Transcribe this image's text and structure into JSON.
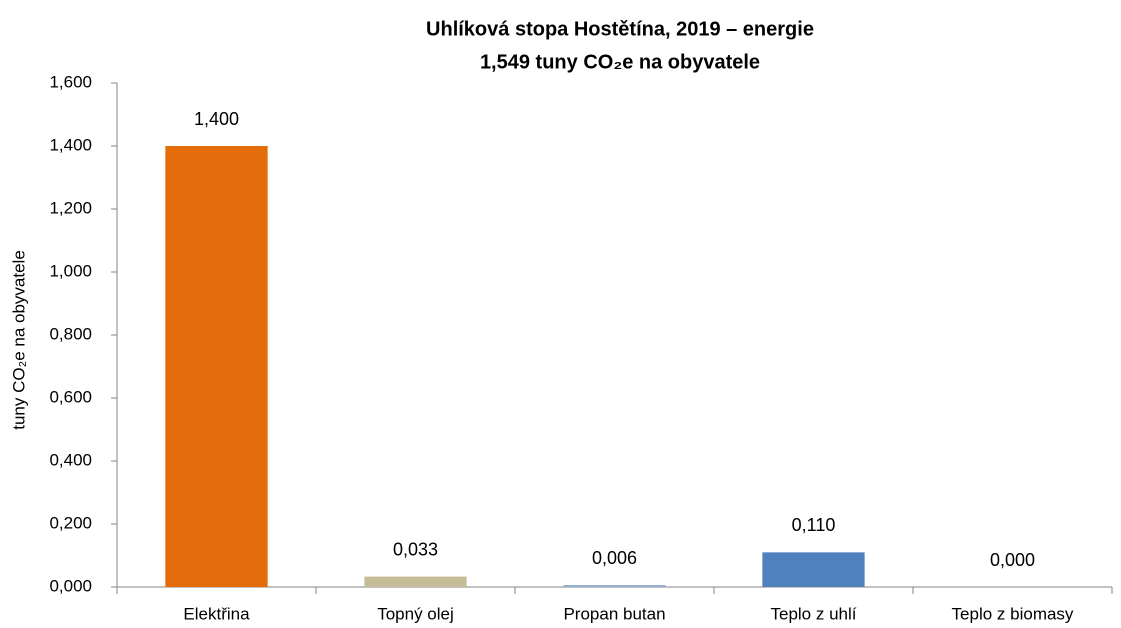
{
  "chart_data": {
    "type": "bar",
    "title": "Uhlíková stopa Hostětína, 2019 – energie",
    "subtitle": "1,549 tuny CO₂e na obyvatele",
    "y_label": "tuny CO₂e na obyvatele",
    "categories": [
      "Elektřina",
      "Topný olej",
      "Propan butan",
      "Teplo z uhlí",
      "Teplo z biomasy"
    ],
    "values": [
      1.4,
      0.033,
      0.006,
      0.11,
      0
    ],
    "value_labels": [
      "1,400",
      "0,033",
      "0,006",
      "0,110",
      "0,000"
    ],
    "colors": [
      "#e46c0a",
      "#c4bd97",
      "#8eaccb",
      "#4f81bd",
      "#9bbb59"
    ],
    "ylim": [
      0,
      1.6
    ],
    "yticks": [
      {
        "value": 0,
        "label": "0,000"
      },
      {
        "value": 0.2,
        "label": "0,200"
      },
      {
        "value": 0.4,
        "label": "0,400"
      },
      {
        "value": 0.6,
        "label": "0,600"
      },
      {
        "value": 0.8,
        "label": "0,800"
      },
      {
        "value": 1.0,
        "label": "1,000"
      },
      {
        "value": 1.2,
        "label": "1,200"
      },
      {
        "value": 1.4,
        "label": "1,400"
      },
      {
        "value": 1.6,
        "label": "1,600"
      }
    ],
    "grid": false
  }
}
